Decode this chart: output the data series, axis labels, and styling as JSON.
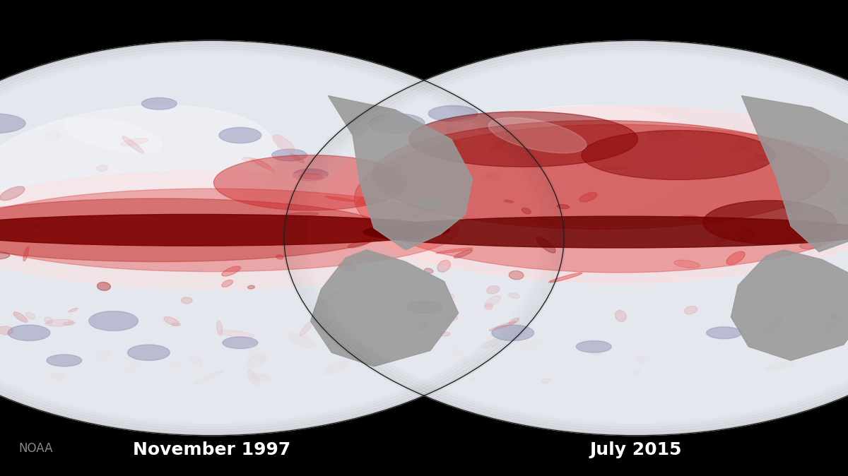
{
  "background_color": "#000000",
  "fig_width": 12.0,
  "fig_height": 6.74,
  "label_left": "November 1997",
  "label_right": "July 2015",
  "noaa_text": "NOAA",
  "noaa_color": "#888888",
  "label_color": "#ffffff",
  "label_fontsize": 18,
  "noaa_fontsize": 12,
  "ocean_color": "#e4e8ee",
  "land_color": "#999999",
  "dark_red": "#7a0000",
  "mid_red": "#cc3333",
  "light_red": "#ffcccc",
  "blue_spot": "#9999bb"
}
